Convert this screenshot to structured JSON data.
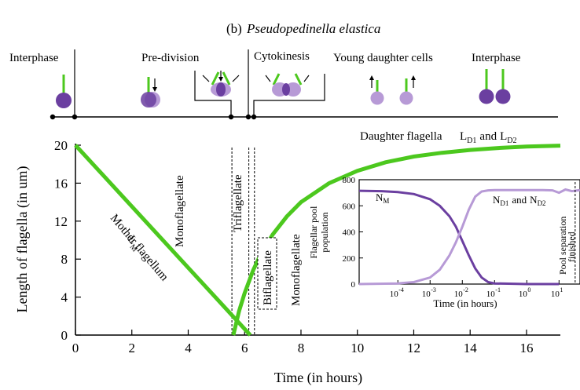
{
  "figure": {
    "label": "(b)",
    "species": "Pseudopedinella elastica"
  },
  "stages": {
    "interphase_left": "Interphase",
    "pre_division": "Pre-division",
    "cytokinesis": "Cytokinesis",
    "young_daughter": "Young daughter cells",
    "interphase_right": "Interphase"
  },
  "colors": {
    "mother": "#6b3fa0",
    "daughter": "#b79ad6",
    "flagellum": "#4cc81e",
    "axis": "#000000"
  },
  "chart_data": [
    {
      "type": "line",
      "xlabel": "Time (in hours)",
      "ylabel": "Length of flagella (in um)",
      "xlim": [
        0,
        17.2
      ],
      "ylim": [
        0,
        20
      ],
      "xticks": [
        0,
        2,
        4,
        6,
        8,
        10,
        12,
        14,
        16
      ],
      "yticks": [
        0,
        4,
        8,
        12,
        16,
        20
      ],
      "series": [
        {
          "name": "Mother flagellum",
          "name_sub": "L",
          "name_sub2": "M",
          "x": [
            0,
            6.2
          ],
          "y": [
            20,
            0
          ]
        },
        {
          "name": "Daughter flagella",
          "name_parts": [
            "L",
            "D1",
            "and",
            "L",
            "D2"
          ],
          "x": [
            5.6,
            5.8,
            6.0,
            6.3,
            6.6,
            7.0,
            7.5,
            8.0,
            9.0,
            10.0,
            11.0,
            12.0,
            13.0,
            14.0,
            15.0,
            16.0,
            17.2
          ],
          "y": [
            0,
            2.5,
            4.4,
            6.8,
            8.7,
            10.6,
            12.5,
            14.0,
            16.0,
            17.3,
            18.2,
            18.8,
            19.2,
            19.5,
            19.7,
            19.85,
            19.95
          ]
        }
      ],
      "phases": [
        {
          "label": "Monoflagellate",
          "x": 4.2,
          "y": 15
        },
        {
          "label": "Triflagellate",
          "x": 5.95,
          "y": 14
        },
        {
          "label": "Biflagellate",
          "x": 6.7,
          "y": 6
        },
        {
          "label": "Monoflagellate",
          "x": 7.7,
          "y": 7
        }
      ],
      "phase_boundaries": [
        5.55,
        6.15,
        6.35
      ]
    },
    {
      "type": "line",
      "xlabel": "Time (in hours)",
      "ylabel_lines": [
        "Flagellar pool",
        "population"
      ],
      "xscale": "log",
      "xlim_exp": [
        -5.2,
        1.65
      ],
      "xticks_exp": [
        -4,
        -3,
        -2,
        -1,
        0,
        1
      ],
      "ylim": [
        0,
        800
      ],
      "yticks": [
        0,
        200,
        400,
        600,
        800
      ],
      "series": [
        {
          "name": "N",
          "sub": "M",
          "log10x": [
            -5.2,
            -4.5,
            -4.0,
            -3.5,
            -3.0,
            -2.7,
            -2.4,
            -2.2,
            -2.0,
            -1.8,
            -1.6,
            -1.4,
            -1.2,
            -1.0,
            0,
            1.0
          ],
          "y": [
            715,
            712,
            705,
            690,
            650,
            600,
            520,
            440,
            330,
            220,
            120,
            50,
            15,
            5,
            0,
            0
          ]
        },
        {
          "name_parts": [
            "N",
            "D1",
            "and",
            "N",
            "D2"
          ],
          "log10x": [
            -5.2,
            -4.0,
            -3.5,
            -3.0,
            -2.7,
            -2.4,
            -2.2,
            -2.0,
            -1.8,
            -1.6,
            -1.4,
            -1.2,
            -1.0,
            0,
            0.5,
            0.8,
            1.0,
            1.2,
            1.4,
            1.65
          ],
          "y": [
            0,
            5,
            15,
            50,
            110,
            220,
            320,
            440,
            570,
            670,
            710,
            718,
            720,
            720,
            720,
            718,
            700,
            725,
            712,
            720
          ]
        }
      ],
      "annotation": [
        "Pool separation",
        "finished"
      ],
      "annotation_log10x": 1.5
    }
  ]
}
